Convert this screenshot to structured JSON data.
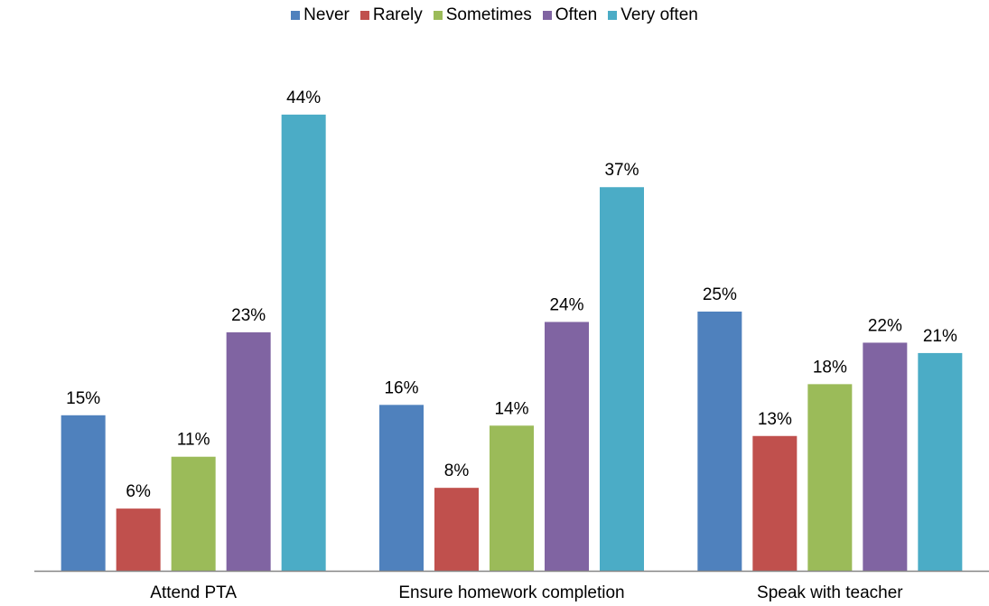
{
  "chart_data": {
    "type": "bar",
    "categories": [
      "Attend PTA",
      "Ensure homework completion",
      "Speak with teacher"
    ],
    "series": [
      {
        "name": "Never",
        "color": "#4F81BD",
        "values": [
          15,
          16,
          25
        ]
      },
      {
        "name": "Rarely",
        "color": "#C0504D",
        "values": [
          6,
          8,
          13
        ]
      },
      {
        "name": "Sometimes",
        "color": "#9BBB59",
        "values": [
          11,
          14,
          18
        ]
      },
      {
        "name": "Often",
        "color": "#8064A2",
        "values": [
          23,
          24,
          22
        ]
      },
      {
        "name": "Very often",
        "color": "#4BACC6",
        "values": [
          44,
          37,
          21
        ]
      }
    ],
    "value_format": "{v}%",
    "legend_position": "top",
    "grid": false,
    "ylim": [
      0,
      50
    ],
    "title": "",
    "xlabel": "",
    "ylabel": ""
  }
}
